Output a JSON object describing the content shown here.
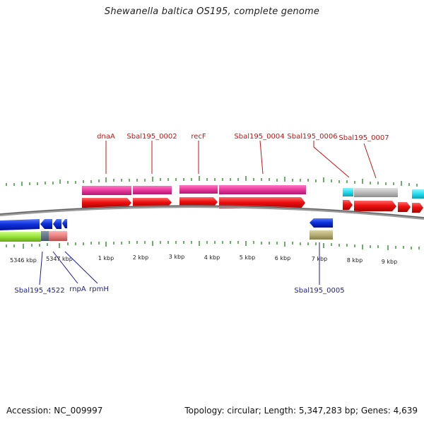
{
  "title": "Shewanella baltica OS195, complete genome",
  "footer": {
    "accession": "Accession: NC_009997",
    "summary": "Topology: circular; Length: 5,347,283 bp; Genes: 4,639"
  },
  "upper_labels": [
    "dnaA",
    "Sbal195_0002",
    "recF",
    "Sbal195_0004",
    "Sbal195_0006",
    "Sbal195_0007"
  ],
  "lower_labels": [
    "Sbal195_4522",
    "rnpA",
    "rpmH",
    "Sbal195_0005"
  ],
  "ticks": [
    "5346 kbp",
    "5347 kbp",
    "1 kbp",
    "2 kbp",
    "3 kbp",
    "4 kbp",
    "5 kbp",
    "6 kbp",
    "7 kbp",
    "8 kbp",
    "9 kbp"
  ],
  "colors": {
    "forward_cds": "#ee1111",
    "reverse_cds": "#1133dd",
    "upper_label": "#cc1111",
    "lower_label": "#1a1aaa",
    "gene_magenta": "#e8399a",
    "gene_cyan": "#22ddee",
    "gene_gray": "#bbbbbb",
    "gene_green": "#99e23a",
    "gene_olive": "#b5ad75",
    "gene_salmon": "#e88080",
    "gene_slate": "#667788",
    "tick_green": "#2e8b2e",
    "backbone": "#777777"
  }
}
